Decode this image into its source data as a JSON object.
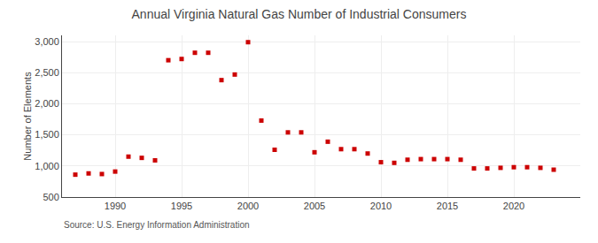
{
  "chart_data": {
    "type": "scatter",
    "title": "Annual Virginia Natural Gas Number of Industrial Consumers",
    "ylabel": "Number of Elements",
    "annotations": [
      "Source: U.S. Energy Information Administration"
    ],
    "x": [
      1987,
      1988,
      1989,
      1990,
      1991,
      1992,
      1993,
      1994,
      1995,
      1996,
      1997,
      1998,
      1999,
      2000,
      2001,
      2002,
      2003,
      2004,
      2005,
      2006,
      2007,
      2008,
      2009,
      2010,
      2011,
      2012,
      2013,
      2014,
      2015,
      2016,
      2017,
      2018,
      2019,
      2020,
      2021,
      2022,
      2023
    ],
    "values": [
      860,
      880,
      870,
      910,
      1150,
      1130,
      1090,
      2700,
      2720,
      2820,
      2820,
      2380,
      2470,
      2990,
      1730,
      1260,
      1540,
      1540,
      1220,
      1390,
      1270,
      1270,
      1200,
      1060,
      1050,
      1100,
      1110,
      1110,
      1110,
      1100,
      960,
      960,
      970,
      980,
      980,
      970,
      940
    ],
    "color": "#cc0000",
    "marker": "square",
    "xlim": [
      1986,
      2025
    ],
    "xticks": [
      1990,
      1995,
      2000,
      2005,
      2010,
      2015,
      2020
    ],
    "ylim": [
      500,
      3100
    ],
    "yticks": [
      500,
      {
        "value": 1000,
        "label": "1,000"
      },
      {
        "value": 1500,
        "label": "1,500"
      },
      {
        "value": 2000,
        "label": "2,000"
      },
      {
        "value": 2500,
        "label": "2,500"
      },
      {
        "value": 3000,
        "label": "3,000"
      }
    ],
    "grid": true
  }
}
